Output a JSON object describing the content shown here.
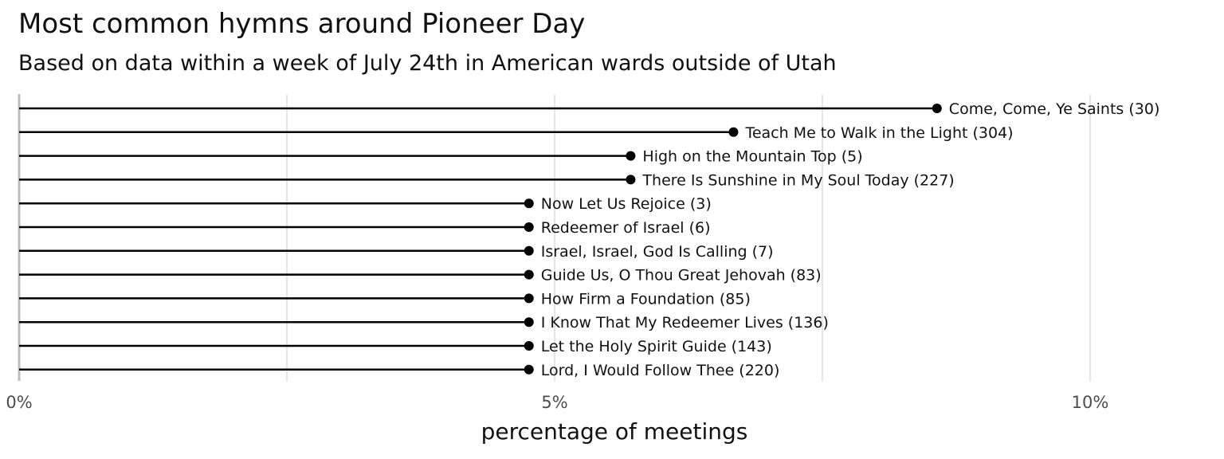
{
  "header": {
    "title": "Most common hymns around Pioneer Day",
    "subtitle": "Based on data within a week of July 24th in American wards outside of Utah"
  },
  "chart_data": {
    "type": "lollipop",
    "title": "Most common hymns around Pioneer Day",
    "subtitle": "Based on data within a week of July 24th in American wards outside of Utah",
    "xlabel": "percentage of meetings",
    "ylabel": "",
    "xlim": [
      0,
      11
    ],
    "x_ticks": [
      0,
      5,
      10
    ],
    "x_tick_labels": [
      "0%",
      "5%",
      "10%"
    ],
    "grid": "vertical",
    "legend": "none",
    "colors": {
      "line": "#000000",
      "point": "#000000",
      "grid": "#e5e5e5"
    },
    "points": [
      {
        "label": "Come, Come, Ye Saints (30)",
        "value": 8.57
      },
      {
        "label": "Teach Me to Walk in the Light (304)",
        "value": 6.67
      },
      {
        "label": "High on the Mountain Top (5)",
        "value": 5.71
      },
      {
        "label": "There Is Sunshine in My Soul Today (227)",
        "value": 5.71
      },
      {
        "label": "Now Let Us Rejoice (3)",
        "value": 4.76
      },
      {
        "label": "Redeemer of Israel (6)",
        "value": 4.76
      },
      {
        "label": "Israel, Israel, God Is Calling (7)",
        "value": 4.76
      },
      {
        "label": "Guide Us, O Thou Great Jehovah (83)",
        "value": 4.76
      },
      {
        "label": "How Firm a Foundation (85)",
        "value": 4.76
      },
      {
        "label": "I Know That My Redeemer Lives (136)",
        "value": 4.76
      },
      {
        "label": "Let the Holy Spirit Guide (143)",
        "value": 4.76
      },
      {
        "label": "Lord, I Would Follow Thee (220)",
        "value": 4.76
      }
    ]
  }
}
